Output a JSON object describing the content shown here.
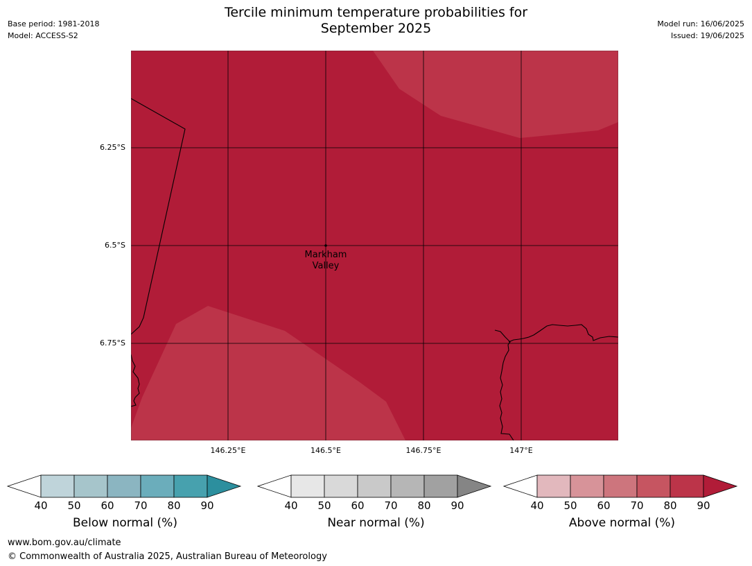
{
  "header": {
    "title_line1": "Tercile minimum temperature probabilities for",
    "title_line2": "September 2025",
    "base_period": "Base period: 1981-2018",
    "model": "Model: ACCESS-S2",
    "model_run": "Model run: 16/06/2025",
    "issued": "Issued: 19/06/2025"
  },
  "map": {
    "lat_labels": [
      "6.25°S",
      "6.5°S",
      "6.75°S"
    ],
    "lon_labels": [
      "146.25°E",
      "146.5°E",
      "146.75°E",
      "147°E"
    ],
    "place": {
      "line1": "Markham",
      "line2": "Valley"
    },
    "colors": {
      "above_80_90": "#b11c38",
      "above_70_80": "#bc3449",
      "grid": "#000000"
    }
  },
  "legends": [
    {
      "title": "Below normal (%)",
      "ticks": [
        "40",
        "50",
        "60",
        "70",
        "80",
        "90"
      ],
      "colors": [
        "#bfd4da",
        "#a6c5cb",
        "#8bb5c1",
        "#6badbb",
        "#47a1ae",
        "#2c8f9e"
      ]
    },
    {
      "title": "Near normal (%)",
      "ticks": [
        "40",
        "50",
        "60",
        "70",
        "80",
        "90"
      ],
      "colors": [
        "#e7e7e7",
        "#d9d9d9",
        "#c9c9c9",
        "#b6b6b6",
        "#a1a1a1",
        "#858585"
      ]
    },
    {
      "title": "Above normal (%)",
      "ticks": [
        "40",
        "50",
        "60",
        "70",
        "80",
        "90"
      ],
      "colors": [
        "#e2b8bd",
        "#d79399",
        "#cd757d",
        "#c65561",
        "#bc3449",
        "#b11c38"
      ]
    }
  ],
  "footer": {
    "url": "www.bom.gov.au/climate",
    "copyright": "© Commonwealth of Australia 2025, Australian Bureau of Meteorology"
  }
}
